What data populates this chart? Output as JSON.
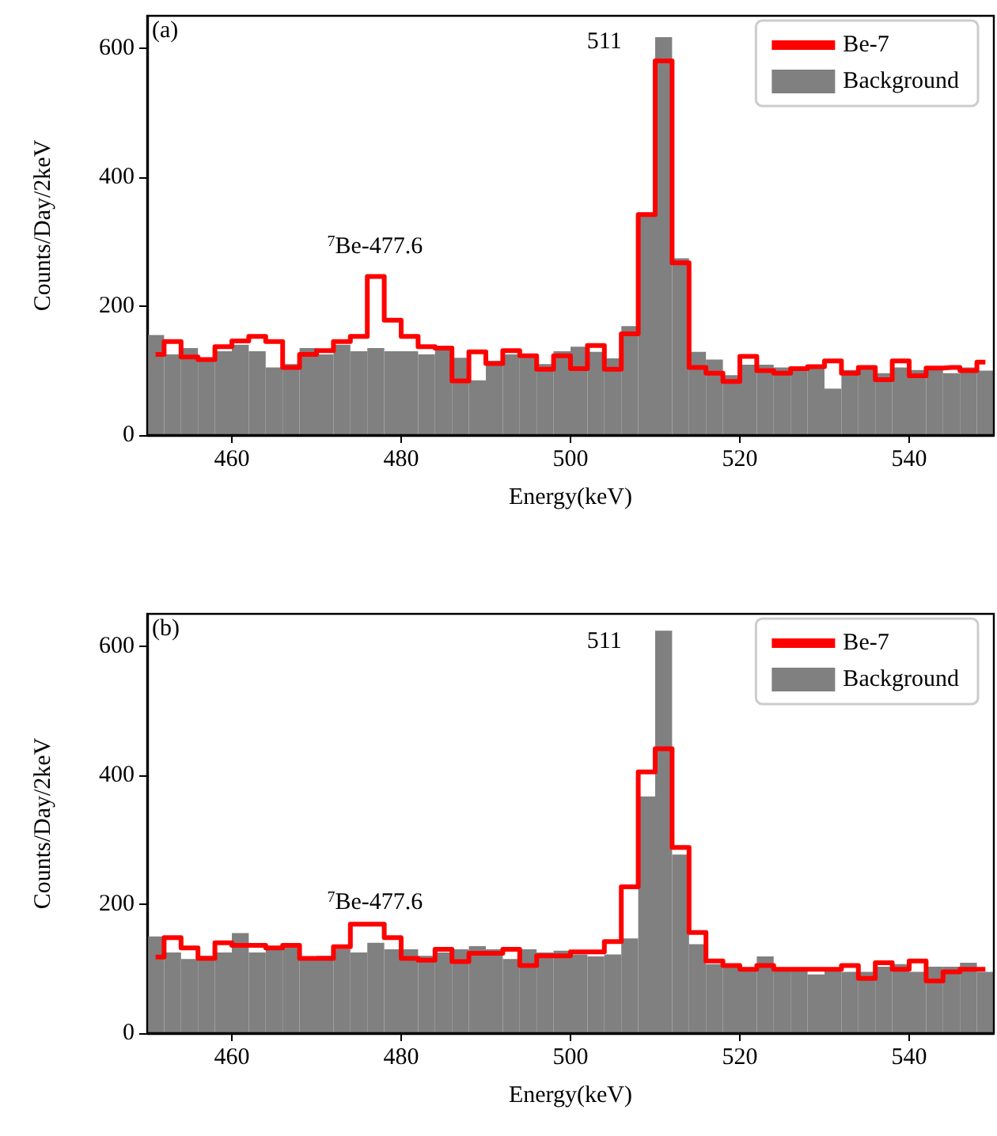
{
  "chart_data": [
    {
      "type": "histogram",
      "xlabel": "Energy(keV)",
      "ylabel": "Counts/Day/2keV",
      "legend": "top right",
      "xlim": [
        450,
        550
      ],
      "xticks": [
        460,
        480,
        500,
        520,
        540
      ],
      "ylim": [
        0,
        650
      ],
      "yticks": [
        0,
        200,
        400,
        600
      ],
      "annotations": [
        "(a)",
        "$^{7}$Be-477.6",
        "511"
      ],
      "bins": [
        450,
        452,
        454,
        456,
        458,
        460,
        462,
        464,
        466,
        468,
        470,
        472,
        474,
        476,
        478,
        480,
        482,
        484,
        486,
        488,
        490,
        492,
        494,
        496,
        498,
        500,
        502,
        504,
        506,
        508,
        510,
        512,
        514,
        516,
        518,
        520,
        522,
        524,
        526,
        528,
        530,
        532,
        534,
        536,
        538,
        540,
        542,
        544,
        546,
        548,
        550
      ],
      "series": [
        {
          "name": "Be-7",
          "type": "step",
          "color": "#ff0000",
          "x": [
            451,
            453,
            455,
            457,
            459,
            461,
            463,
            465,
            467,
            469,
            471,
            473,
            475,
            477,
            479,
            481,
            483,
            485,
            487,
            489,
            491,
            493,
            495,
            497,
            499,
            501,
            503,
            505,
            507,
            509,
            511,
            513,
            515,
            517,
            519,
            521,
            523,
            525,
            527,
            529,
            531,
            533,
            535,
            537,
            539,
            541,
            543,
            545,
            547,
            549
          ],
          "values": [
            125,
            145,
            121,
            117,
            137,
            146,
            153,
            145,
            105,
            125,
            131,
            145,
            153,
            246,
            178,
            153,
            137,
            135,
            84,
            129,
            111,
            131,
            123,
            102,
            123,
            103,
            139,
            102,
            157,
            342,
            580,
            267,
            105,
            96,
            83,
            122,
            100,
            96,
            103,
            106,
            115,
            96,
            105,
            86,
            115,
            92,
            104,
            105,
            100,
            113
          ]
        },
        {
          "name": "Background",
          "color": "#808080",
          "values": [
            155,
            125,
            135,
            120,
            130,
            140,
            130,
            105,
            110,
            135,
            125,
            140,
            130,
            135,
            130,
            130,
            125,
            135,
            120,
            85,
            115,
            125,
            120,
            110,
            130,
            137,
            129,
            119,
            169,
            345,
            617,
            274,
            129,
            117,
            93,
            109,
            109,
            105,
            105,
            109,
            72,
            101,
            105,
            96,
            105,
            101,
            105,
            96,
            105,
            100
          ]
        }
      ]
    },
    {
      "type": "histogram",
      "xlabel": "Energy(keV)",
      "ylabel": "Counts/Day/2keV",
      "legend": "top right",
      "xlim": [
        450,
        550
      ],
      "xticks": [
        460,
        480,
        500,
        520,
        540
      ],
      "ylim": [
        0,
        650
      ],
      "yticks": [
        0,
        200,
        400,
        600
      ],
      "annotations": [
        "(b)",
        "$^{7}$Be-477.6",
        "511"
      ],
      "bins": [
        450,
        452,
        454,
        456,
        458,
        460,
        462,
        464,
        466,
        468,
        470,
        472,
        474,
        476,
        478,
        480,
        482,
        484,
        486,
        488,
        490,
        492,
        494,
        496,
        498,
        500,
        502,
        504,
        506,
        508,
        510,
        512,
        514,
        516,
        518,
        520,
        522,
        524,
        526,
        528,
        530,
        532,
        534,
        536,
        538,
        540,
        542,
        544,
        546,
        548,
        550
      ],
      "series": [
        {
          "name": "Be-7",
          "type": "step",
          "color": "#ff0000",
          "x": [
            451,
            453,
            455,
            457,
            459,
            461,
            463,
            465,
            467,
            469,
            471,
            473,
            475,
            477,
            479,
            481,
            483,
            485,
            487,
            489,
            491,
            493,
            495,
            497,
            499,
            501,
            503,
            505,
            507,
            509,
            511,
            513,
            515,
            517,
            519,
            521,
            523,
            525,
            527,
            529,
            531,
            533,
            535,
            537,
            539,
            541,
            543,
            545,
            547,
            549
          ],
          "values": [
            118,
            148,
            132,
            116,
            140,
            136,
            136,
            132,
            136,
            116,
            116,
            134,
            169,
            169,
            148,
            116,
            113,
            130,
            111,
            124,
            124,
            130,
            105,
            120,
            120,
            126,
            126,
            142,
            227,
            405,
            441,
            288,
            156,
            112,
            105,
            99,
            105,
            99,
            99,
            99,
            99,
            105,
            85,
            109,
            99,
            112,
            81,
            95,
            99,
            99
          ]
        },
        {
          "name": "Background",
          "color": "#808080",
          "values": [
            150,
            125,
            115,
            120,
            125,
            155,
            125,
            130,
            135,
            115,
            120,
            130,
            125,
            140,
            130,
            130,
            120,
            125,
            130,
            135,
            130,
            115,
            130,
            125,
            128,
            122,
            119,
            122,
            147,
            367,
            624,
            277,
            138,
            107,
            103,
            99,
            119,
            99,
            99,
            91,
            99,
            95,
            95,
            103,
            107,
            95,
            103,
            103,
            109,
            95
          ]
        }
      ]
    }
  ]
}
